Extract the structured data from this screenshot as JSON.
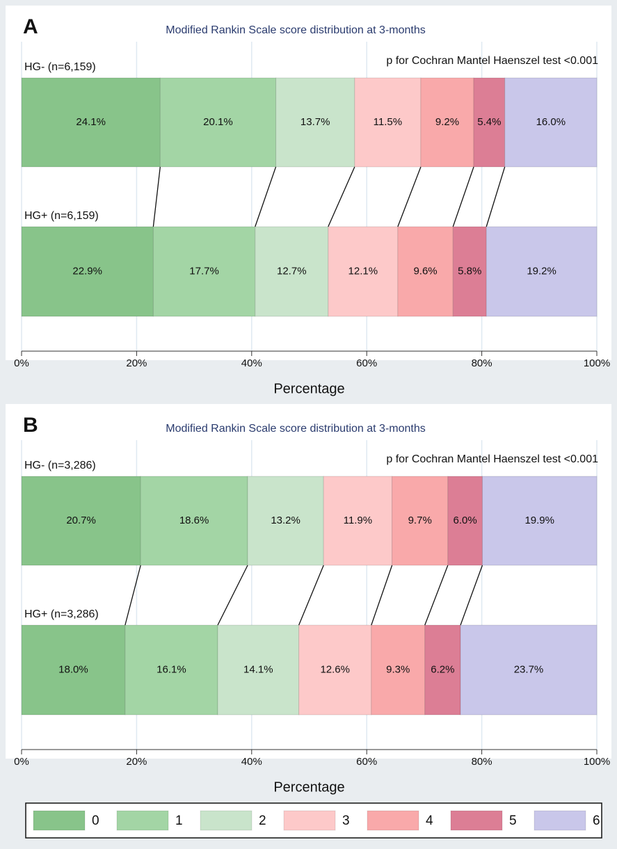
{
  "chart_data": [
    {
      "type": "stacked-bar-horizontal",
      "label": "A",
      "title": "Modified Rankin Scale score distribution at 3-months",
      "annotation": "p for Cochran Mantel Haenszel test <0.001",
      "categories": [
        "HG- (n=6,159)",
        "HG+ (n=6,159)"
      ],
      "series": [
        {
          "name": "0",
          "color": "#88c48a",
          "values": [
            24.1,
            22.9
          ],
          "value_labels": [
            "24.1%",
            "22.9%"
          ]
        },
        {
          "name": "1",
          "color": "#a3d5a5",
          "values": [
            20.1,
            17.7
          ],
          "value_labels": [
            "20.1%",
            "17.7%"
          ]
        },
        {
          "name": "2",
          "color": "#c9e4cb",
          "values": [
            13.7,
            12.7
          ],
          "value_labels": [
            "13.7%",
            "12.7%"
          ]
        },
        {
          "name": "3",
          "color": "#fdc9c9",
          "values": [
            11.5,
            12.1
          ],
          "value_labels": [
            "11.5%",
            "12.1%"
          ]
        },
        {
          "name": "4",
          "color": "#f9a9aa",
          "values": [
            9.2,
            9.6
          ],
          "value_labels": [
            "9.2%",
            "9.6%"
          ]
        },
        {
          "name": "5",
          "color": "#dc7e95",
          "values": [
            5.4,
            5.8
          ],
          "value_labels": [
            "5.4%",
            "5.8%"
          ]
        },
        {
          "name": "6",
          "color": "#c9c7ea",
          "values": [
            16.0,
            19.2
          ],
          "value_labels": [
            "16.0%",
            "19.2%"
          ]
        }
      ],
      "xlabel": "Percentage",
      "xlim": [
        0,
        100
      ],
      "xticks": [
        {
          "value": 0,
          "label": "0%"
        },
        {
          "value": 20,
          "label": "20%"
        },
        {
          "value": 40,
          "label": "40%"
        },
        {
          "value": 60,
          "label": "60%"
        },
        {
          "value": 80,
          "label": "80%"
        },
        {
          "value": 100,
          "label": "100%"
        }
      ],
      "grid": true
    },
    {
      "type": "stacked-bar-horizontal",
      "label": "B",
      "title": "Modified Rankin Scale score distribution at 3-months",
      "annotation": "p for Cochran Mantel Haenszel test <0.001",
      "categories": [
        "HG- (n=3,286)",
        "HG+ (n=3,286)"
      ],
      "series": [
        {
          "name": "0",
          "color": "#88c48a",
          "values": [
            20.7,
            18.0
          ],
          "value_labels": [
            "20.7%",
            "18.0%"
          ]
        },
        {
          "name": "1",
          "color": "#a3d5a5",
          "values": [
            18.6,
            16.1
          ],
          "value_labels": [
            "18.6%",
            "16.1%"
          ]
        },
        {
          "name": "2",
          "color": "#c9e4cb",
          "values": [
            13.2,
            14.1
          ],
          "value_labels": [
            "13.2%",
            "14.1%"
          ]
        },
        {
          "name": "3",
          "color": "#fdc9c9",
          "values": [
            11.9,
            12.6
          ],
          "value_labels": [
            "11.9%",
            "12.6%"
          ]
        },
        {
          "name": "4",
          "color": "#f9a9aa",
          "values": [
            9.7,
            9.3
          ],
          "value_labels": [
            "9.7%",
            "9.3%"
          ]
        },
        {
          "name": "5",
          "color": "#dc7e95",
          "values": [
            6.0,
            6.2
          ],
          "value_labels": [
            "6.0%",
            "6.2%"
          ]
        },
        {
          "name": "6",
          "color": "#c9c7ea",
          "values": [
            19.9,
            23.7
          ],
          "value_labels": [
            "19.9%",
            "23.7%"
          ]
        }
      ],
      "xlabel": "Percentage",
      "xlim": [
        0,
        100
      ],
      "xticks": [
        {
          "value": 0,
          "label": "0%"
        },
        {
          "value": 20,
          "label": "20%"
        },
        {
          "value": 40,
          "label": "40%"
        },
        {
          "value": 60,
          "label": "60%"
        },
        {
          "value": 80,
          "label": "80%"
        },
        {
          "value": 100,
          "label": "100%"
        }
      ],
      "grid": true
    }
  ]
}
